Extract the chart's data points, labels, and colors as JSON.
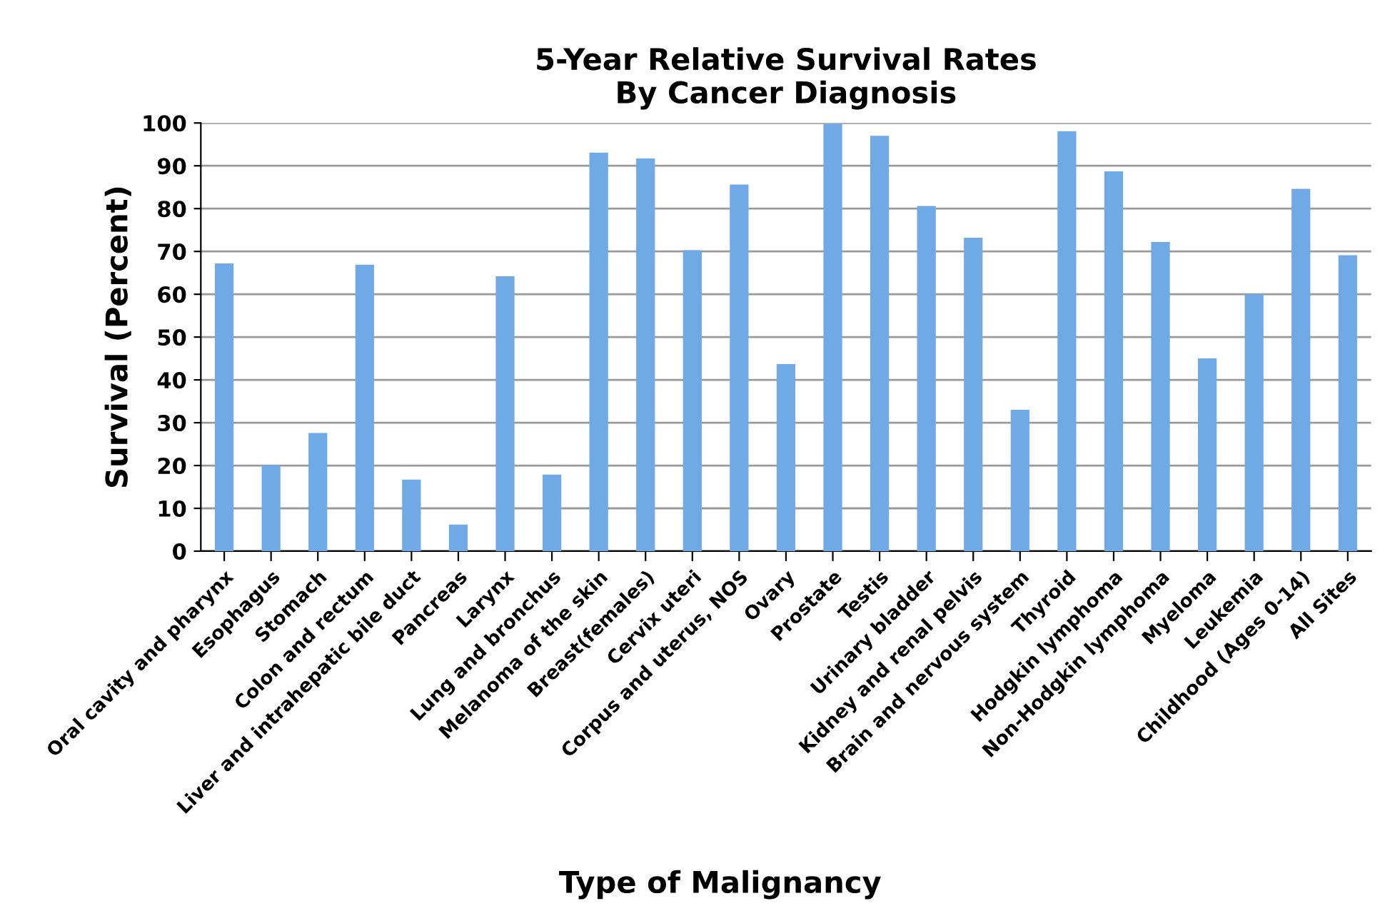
{
  "chart_data": {
    "type": "bar",
    "title": "5-Year Relative Survival Rates\nBy Cancer Diagnosis",
    "xlabel": "Type of Malignancy",
    "ylabel": "Survival (Percent)",
    "categories": [
      "Oral cavity and pharynx",
      "Esophagus",
      "Stomach",
      "Colon and rectum",
      "Liver and intrahepatic bile duct",
      "Pancreas",
      "Larynx",
      "Lung and bronchus",
      "Melanoma of the skin",
      "Breast(females)",
      "Cervix uteri",
      "Corpus and uterus, NOS",
      "Ovary",
      "Prostate",
      "Testis",
      "Urinary bladder",
      "Kidney and renal pelvis",
      "Brain and nervous system",
      "Thyroid",
      "Hodgkin lymphoma",
      "Non-Hodgkin lymphoma",
      "Myeloma",
      "Leukemia",
      "Childhood (Ages 0-14)",
      "All Sites"
    ],
    "values": [
      67.2,
      20.1,
      27.6,
      66.9,
      16.7,
      6.2,
      64.2,
      17.9,
      93.1,
      91.7,
      70.3,
      85.6,
      43.7,
      99.8,
      97,
      80.6,
      73.2,
      33,
      98.1,
      88.7,
      72.2,
      45,
      60,
      84.6,
      69.1
    ],
    "color": "#6fa9e6",
    "ylim": [
      0,
      100
    ],
    "yticks": [
      0,
      10,
      20,
      30,
      40,
      50,
      60,
      70,
      80,
      90,
      100
    ],
    "grid": "y",
    "legend": false
  }
}
